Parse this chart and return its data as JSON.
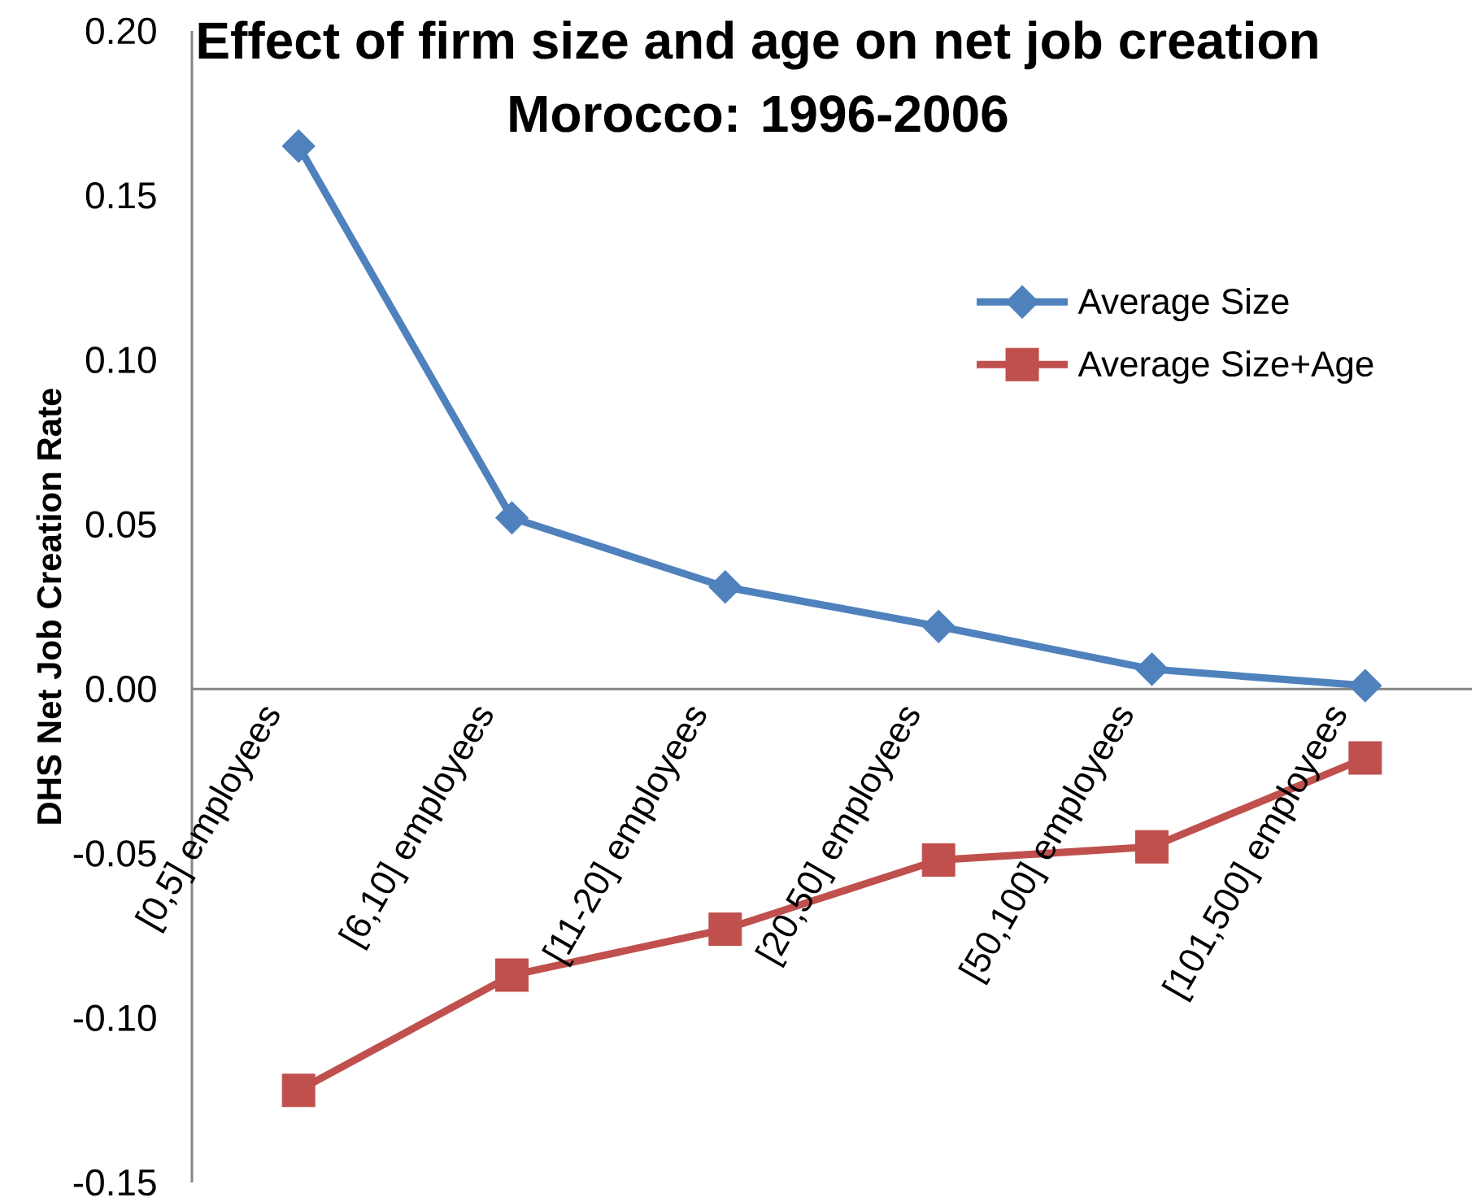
{
  "chart_data": {
    "type": "line",
    "title": "Effect of firm size and age on net job creation",
    "subtitle": "Morocco: 1996-2006",
    "ylabel": "DHS Net Job Creation Rate",
    "categories": [
      "[0,5] employees",
      "[6,10] employees",
      "[11-20] employees",
      "[20,50] employees",
      "[50,100] employees",
      "[101,500] employees"
    ],
    "series": [
      {
        "name": "Average Size",
        "color": "#4f81bd",
        "marker": "diamond",
        "values": [
          0.165,
          0.052,
          0.031,
          0.019,
          0.006,
          0.001
        ]
      },
      {
        "name": "Average Size+Age",
        "color": "#c0504d",
        "marker": "square",
        "values": [
          -0.122,
          -0.087,
          -0.073,
          -0.052,
          -0.048,
          -0.021
        ]
      }
    ],
    "ylim": [
      -0.15,
      0.2
    ],
    "yticks": [
      {
        "value": -0.15,
        "label": "-0.15"
      },
      {
        "value": -0.1,
        "label": "-0.10"
      },
      {
        "value": -0.05,
        "label": "-0.05"
      },
      {
        "value": 0,
        "label": "0.00"
      },
      {
        "value": 0.05,
        "label": "0.05"
      },
      {
        "value": 0.1,
        "label": "0.10"
      },
      {
        "value": 0.15,
        "label": "0.15"
      },
      {
        "value": 0.2,
        "label": "0.20"
      }
    ],
    "legend": "top right",
    "line_style": "solid"
  }
}
